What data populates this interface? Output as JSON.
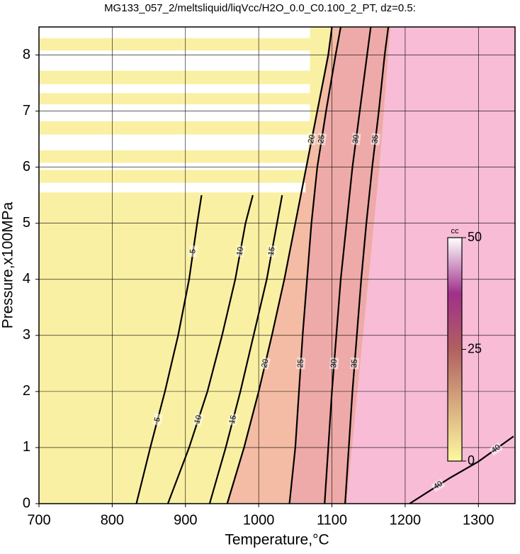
{
  "chart_data": {
    "type": "contour",
    "title": "MG133_057_2/meltsliquid/liqVcc/H2O_0.0_C0.100_2_PT, dz=0.5:",
    "xlabel": "Temperature,°C",
    "ylabel": "Pressure,x100MPa",
    "xlim": [
      700,
      1350
    ],
    "ylim": [
      0,
      8.5
    ],
    "xticks": [
      700,
      800,
      900,
      1000,
      1100,
      1200,
      1300
    ],
    "yticks": [
      0,
      1,
      2,
      3,
      4,
      5,
      6,
      7,
      8
    ],
    "grid": true,
    "regions": [
      {
        "color": "#faf0a4",
        "x": [
          700,
          1350,
          1350,
          700
        ],
        "y": [
          0,
          0,
          8.5,
          8.5
        ]
      },
      {
        "color": "#f4bca4",
        "x": [
          957,
          1042,
          1050,
          1060,
          1072,
          1092,
          1112,
          1100,
          1080,
          1065,
          1050,
          1035,
          1018,
          1000,
          980
        ],
        "y": [
          0,
          0,
          1,
          3,
          5,
          7,
          8.5,
          8.5,
          7,
          6,
          5,
          4,
          3,
          2,
          1
        ]
      },
      {
        "color": "#eeaaa8",
        "x": [
          1042,
          1120,
          1135,
          1150,
          1165,
          1180,
          1112,
          1092,
          1072,
          1060,
          1050
        ],
        "y": [
          0,
          0,
          2,
          4,
          6,
          8.5,
          8.5,
          7,
          5,
          3,
          1
        ]
      },
      {
        "color": "#f8bcd6",
        "x": [
          1120,
          1350,
          1350,
          1180,
          1165,
          1150,
          1135
        ],
        "y": [
          0,
          0,
          8.5,
          8.5,
          6,
          4,
          2
        ]
      },
      {
        "color": "#ffffff",
        "x": [
          700,
          1070,
          1070,
          700
        ],
        "y": [
          8.3,
          8.3,
          8.5,
          8.5
        ]
      },
      {
        "color": "#ffffff",
        "x": [
          700,
          1070,
          1070,
          700
        ],
        "y": [
          7.72,
          7.72,
          8.08,
          8.08
        ]
      },
      {
        "color": "#ffffff",
        "x": [
          700,
          1070,
          1070,
          700
        ],
        "y": [
          7.32,
          7.32,
          7.48,
          7.48
        ]
      },
      {
        "color": "#ffffff",
        "x": [
          700,
          1070,
          1070,
          700
        ],
        "y": [
          6.82,
          6.82,
          7.12,
          7.12
        ]
      },
      {
        "color": "#ffffff",
        "x": [
          700,
          1068,
          1068,
          700
        ],
        "y": [
          6.3,
          6.3,
          6.58,
          6.58
        ]
      },
      {
        "color": "#ffffff",
        "x": [
          700,
          1066,
          1066,
          700
        ],
        "y": [
          5.95,
          5.95,
          6.08,
          6.08
        ]
      },
      {
        "color": "#ffffff",
        "x": [
          700,
          1064,
          1064,
          700
        ],
        "y": [
          5.55,
          5.55,
          5.72,
          5.72
        ]
      }
    ],
    "contours": [
      {
        "level": 5,
        "x": [
          833,
          852,
          872,
          890,
          905,
          916,
          922
        ],
        "y": [
          0,
          1,
          2,
          3,
          4,
          5,
          5.5
        ]
      },
      {
        "level": 10,
        "x": [
          876,
          905,
          930,
          950,
          968,
          982,
          992
        ],
        "y": [
          0,
          1,
          2,
          3,
          4,
          5,
          5.5
        ]
      },
      {
        "level": 15,
        "x": [
          933,
          955,
          975,
          993,
          1011,
          1025,
          1032
        ],
        "y": [
          0,
          1,
          2,
          3,
          4,
          5,
          5.5
        ]
      },
      {
        "level": 20,
        "x": [
          957,
          980,
          1000,
          1018,
          1035,
          1050,
          1065,
          1080,
          1095,
          1100
        ],
        "y": [
          0,
          1,
          2,
          3,
          4,
          5,
          6,
          7,
          8,
          8.5
        ]
      },
      {
        "level": 25,
        "x": [
          1042,
          1050,
          1055,
          1060,
          1066,
          1072,
          1080,
          1092,
          1105,
          1112
        ],
        "y": [
          0,
          1,
          2,
          3,
          4,
          5,
          6,
          7,
          8,
          8.5
        ]
      },
      {
        "level": 30,
        "x": [
          1090,
          1095,
          1100,
          1106,
          1112,
          1120,
          1128,
          1138,
          1148,
          1153
        ],
        "y": [
          0,
          1,
          2,
          3,
          4,
          5,
          6,
          7,
          8,
          8.5
        ]
      },
      {
        "level": 35,
        "x": [
          1118,
          1123,
          1128,
          1134,
          1140,
          1147,
          1155,
          1164,
          1172,
          1177
        ],
        "y": [
          0,
          1,
          2,
          3,
          4,
          5,
          6,
          7,
          8,
          8.5
        ]
      },
      {
        "level": 40,
        "x": [
          1206,
          1230,
          1260,
          1300,
          1348
        ],
        "y": [
          0,
          0.2,
          0.45,
          0.75,
          1.2
        ]
      }
    ],
    "colorbar": {
      "label": "cc",
      "lim": [
        0,
        50
      ],
      "ticks": [
        0,
        25,
        50
      ]
    }
  }
}
